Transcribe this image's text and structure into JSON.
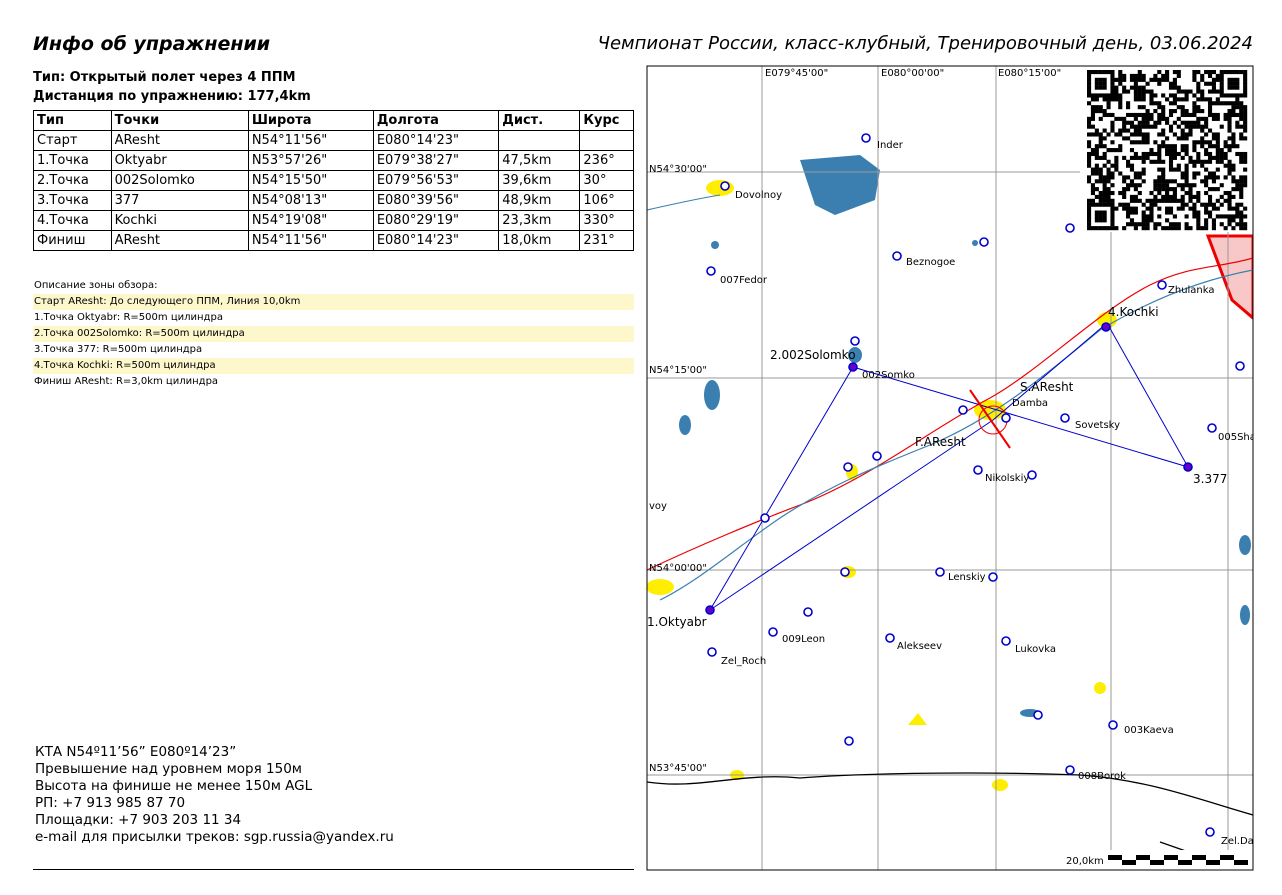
{
  "header": {
    "title": "Инфо об упражнении",
    "event": "Чемпионат России, класс-клубный, Тренировочный день, 03.06.2024"
  },
  "task": {
    "type": "Тип: Открытый полет через 4 ППМ",
    "distance": "Дистанция по упражнению: 177,4km"
  },
  "table": {
    "columns": [
      "Тип",
      "Точки",
      "Широта",
      "Долгота",
      "Дист.",
      "Курс"
    ],
    "rows": [
      [
        "Старт",
        "AResht",
        "N54°11'56\"",
        "E080°14'23\"",
        null,
        null
      ],
      [
        "1.Точка",
        "Oktyabr",
        "N53°57'26\"",
        "E079°38'27\"",
        "47,5km",
        "236°"
      ],
      [
        "2.Точка",
        "002Solomko",
        "N54°15'50\"",
        "E079°56'53\"",
        "39,6km",
        "30°"
      ],
      [
        "3.Точка",
        "377",
        "N54°08'13\"",
        "E080°39'56\"",
        "48,9km",
        "106°"
      ],
      [
        "4.Точка",
        "Kochki",
        "N54°19'08\"",
        "E080°29'19\"",
        "23,3km",
        "330°"
      ],
      [
        "Финиш",
        "AResht",
        "N54°11'56\"",
        "E080°14'23\"",
        "18,0km",
        "231°"
      ]
    ]
  },
  "zones": {
    "title": "Описание зоны обзора:",
    "items": [
      "Старт AResht: До следующего ППМ, Линия 10,0km",
      "1.Точка Oktyabr: R=500m цилиндра",
      "2.Точка 002Solomko: R=500m цилиндра",
      "3.Точка 377: R=500m цилиндра",
      "4.Точка Kochki: R=500m цилиндра",
      "Финиш AResht: R=3,0km цилиндра"
    ]
  },
  "notes": [
    "КТА N54º11’56” E080º14’23”",
    "Превышение над уровнем моря 150м",
    "Высота на финише не менее 150м AGL",
    "РП: +7 913 985 87 70",
    "Площадки: +7 903 203 11 34",
    "e-mail для присылки треков: sgp.russia@yandex.ru"
  ],
  "map": {
    "grid_labels": [
      "E079°45'00\"",
      "E080°00'00\"",
      "E080°15'00\"",
      "N54°30'00\"",
      "N54°15'00\"",
      "N54°00'00\"",
      "N53°45'00\""
    ],
    "labels": [
      "Inder",
      "Dovolnoy",
      "007Fedor",
      "Beznogoe",
      "Zhulanka",
      "4.Kochki",
      "2.002Solomko",
      "002Somko",
      "S.AResht",
      "Damba",
      "Sovetsky",
      "005Sha",
      "F.AResht",
      "Nikolskiy",
      "3.377",
      "voy",
      "Lenskiy",
      "1.Oktyabr",
      "009Leon",
      "Alekseev",
      "Lukovka",
      "Zel_Roch",
      "003Kaeva",
      "008Borok",
      "Zel.Da"
    ],
    "scale": "20,0km"
  }
}
